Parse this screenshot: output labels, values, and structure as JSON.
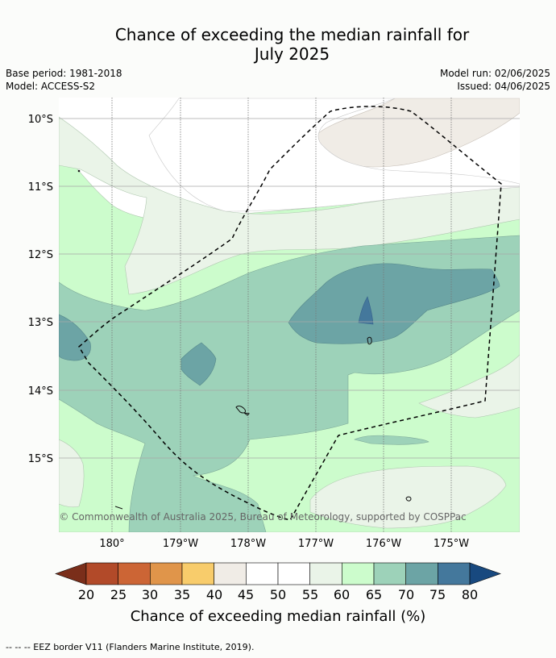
{
  "title": {
    "line1": "Chance of exceeding the median rainfall for",
    "line2": "July 2025"
  },
  "meta": {
    "base_period": "Base period: 1981-2018",
    "model": "Model: ACCESS-S2",
    "model_run": "Model run: 02/06/2025",
    "issued": "Issued: 04/06/2025"
  },
  "map": {
    "lat_labels": [
      "10°S",
      "11°S",
      "12°S",
      "13°S",
      "14°S",
      "15°S"
    ],
    "lon_labels": [
      "180°",
      "179°W",
      "178°W",
      "177°W",
      "176°W",
      "175°W"
    ],
    "copyright": "© Commonwealth of Australia 2025, Bureau of Meteorology, supported by COSPPac"
  },
  "legend": {
    "ticks": [
      "20",
      "25",
      "30",
      "35",
      "40",
      "45",
      "50",
      "55",
      "60",
      "65",
      "70",
      "75",
      "80"
    ],
    "colors": [
      "#7a2e1a",
      "#b24a29",
      "#cc6535",
      "#e0954a",
      "#f8cc6b",
      "#f0ece6",
      "#ffffff",
      "#ffffff",
      "#eaf4e8",
      "#ccfccc",
      "#9dd2b9",
      "#6ca4a5",
      "#44789c",
      "#18497f"
    ],
    "label": "Chance of exceeding median rainfall (%)"
  },
  "footnote": "--  --  -- EEZ border V11 (Flanders Marine Institute, 2019)."
}
